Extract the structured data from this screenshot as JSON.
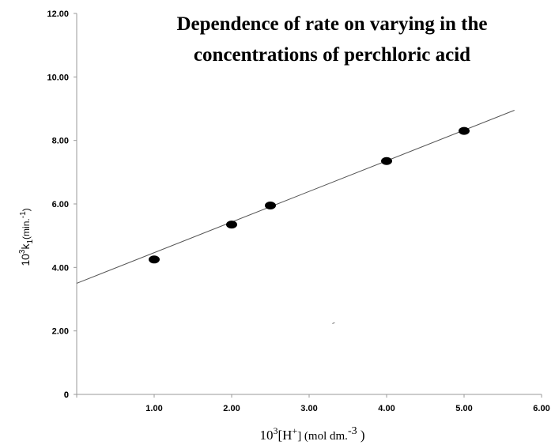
{
  "chart_data": {
    "type": "scatter",
    "title": [
      "Dependence of rate on varying in the",
      "concentrations of  perchloric acid"
    ],
    "xlabel": {
      "prefix": "10",
      "sup1": "3",
      "mid": "[H",
      "sup2": "+",
      "rest": "]  (mol dm.",
      "sup3": "-3",
      "end": " )"
    },
    "ylabel": {
      "prefix": "10",
      "sup": "3",
      "mid": "k",
      "sub": "1",
      "rest": "(min.",
      "sup2": "-1",
      "end": ")"
    },
    "x_ticks": [
      {
        "value": 0,
        "label": "0"
      },
      {
        "value": 1,
        "label": "1.00"
      },
      {
        "value": 2,
        "label": "2.00"
      },
      {
        "value": 3,
        "label": "3.00"
      },
      {
        "value": 4,
        "label": "4.00"
      },
      {
        "value": 5,
        "label": "5.00"
      },
      {
        "value": 6,
        "label": "6.00"
      }
    ],
    "y_ticks": [
      {
        "value": 0,
        "label": "0"
      },
      {
        "value": 2,
        "label": "2.00"
      },
      {
        "value": 4,
        "label": "4.00"
      },
      {
        "value": 6,
        "label": "6.00"
      },
      {
        "value": 8,
        "label": "8.00"
      },
      {
        "value": 10,
        "label": "10.00"
      },
      {
        "value": 12,
        "label": "12.00"
      }
    ],
    "xlim": [
      0,
      6
    ],
    "ylim": [
      0,
      12
    ],
    "points": [
      {
        "x": 1.0,
        "y": 4.25
      },
      {
        "x": 2.0,
        "y": 5.35
      },
      {
        "x": 2.5,
        "y": 5.95
      },
      {
        "x": 4.0,
        "y": 7.35
      },
      {
        "x": 5.0,
        "y": 8.3
      }
    ],
    "trendline": {
      "x_start": 0,
      "y_start": 3.5,
      "x_end": 5.65,
      "y_end": 8.95
    },
    "grid": false,
    "legend": "none",
    "colors": {
      "marker": "#000000",
      "line": "#555555",
      "axis": "#999999",
      "text": "#000000"
    }
  }
}
